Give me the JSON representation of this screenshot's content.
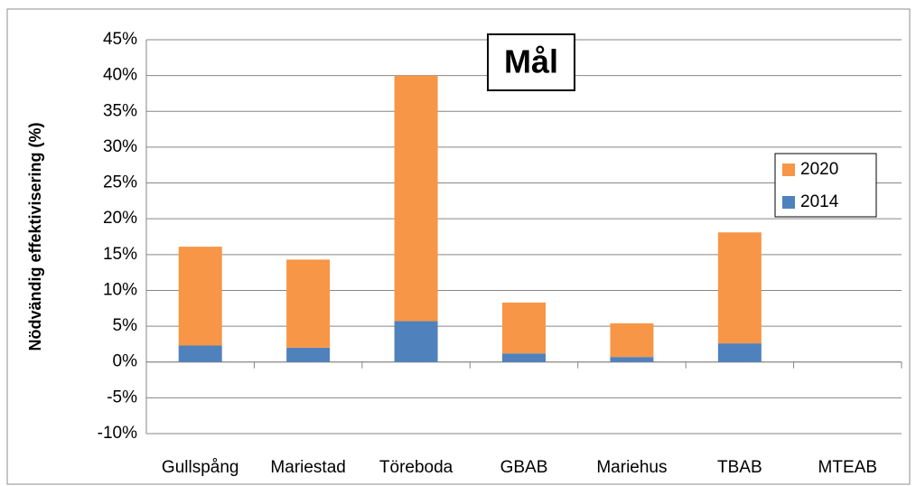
{
  "chart_data": {
    "type": "stacked_bar",
    "y_label": "Nödvändig effektivisering (%)",
    "annotation": "Mål",
    "categories": [
      "Gullspång",
      "Mariestad",
      "Töreboda",
      "GBAB",
      "Mariehus",
      "TBAB",
      "MTEAB"
    ],
    "series": [
      {
        "name": "2014",
        "color": "#4f81bd",
        "values": [
          2.3,
          2.0,
          5.7,
          1.2,
          0.7,
          2.6,
          0
        ]
      },
      {
        "name": "2020",
        "color": "#f79646",
        "values": [
          13.8,
          12.3,
          34.3,
          7.1,
          4.7,
          15.5,
          0
        ]
      }
    ],
    "ylim": [
      -10,
      45
    ],
    "yticks": [
      {
        "value": -10,
        "label": "-10%"
      },
      {
        "value": -5,
        "label": "-5%"
      },
      {
        "value": 0,
        "label": "0%"
      },
      {
        "value": 5,
        "label": "5%"
      },
      {
        "value": 10,
        "label": "10%"
      },
      {
        "value": 15,
        "label": "15%"
      },
      {
        "value": 20,
        "label": "20%"
      },
      {
        "value": 25,
        "label": "25%"
      },
      {
        "value": 30,
        "label": "30%"
      },
      {
        "value": 35,
        "label": "35%"
      },
      {
        "value": 40,
        "label": "40%"
      },
      {
        "value": 45,
        "label": "45%"
      }
    ],
    "grid": true
  }
}
